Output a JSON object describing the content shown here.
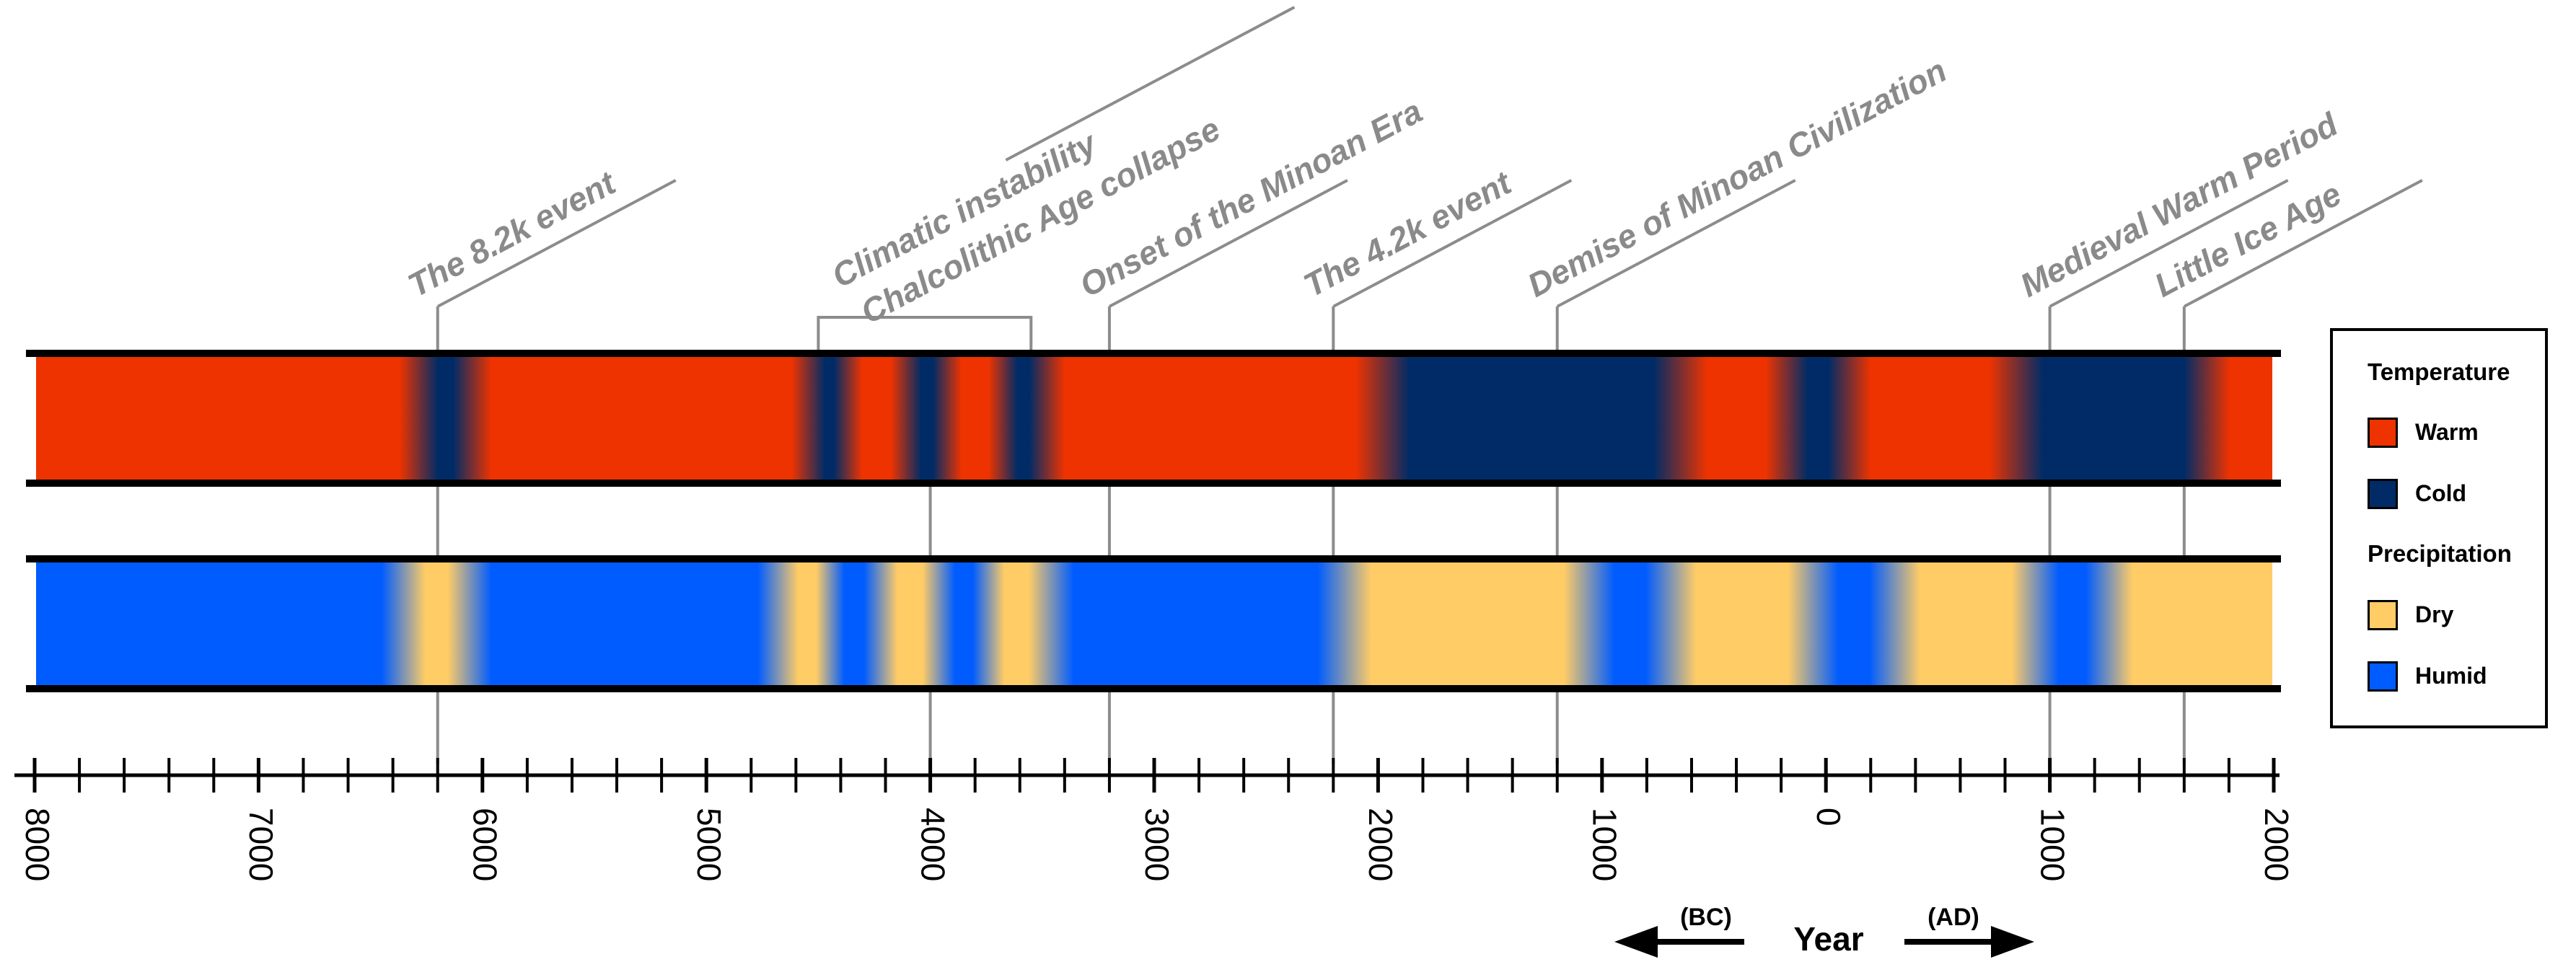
{
  "chart_data": {
    "type": "timeline",
    "x_axis": {
      "label": "Year",
      "range": [
        -8000,
        2000
      ],
      "major_step": 1000,
      "minor_step": 200,
      "tick_labels": [
        {
          "value": -8000,
          "text": "8000"
        },
        {
          "value": -7000,
          "text": "7000"
        },
        {
          "value": -6000,
          "text": "6000"
        },
        {
          "value": -5000,
          "text": "5000"
        },
        {
          "value": -4000,
          "text": "4000"
        },
        {
          "value": -3000,
          "text": "3000"
        },
        {
          "value": -2000,
          "text": "2000"
        },
        {
          "value": -1000,
          "text": "1000"
        },
        {
          "value": 0,
          "text": "0"
        },
        {
          "value": 1000,
          "text": "1000"
        },
        {
          "value": 2000,
          "text": "2000"
        }
      ],
      "bc_label": "(BC)",
      "ad_label": "(AD)"
    },
    "temperature": {
      "legend_title": "Temperature",
      "colors": {
        "warm": "#ee3300",
        "cold": "#002b66"
      },
      "labels": {
        "warm": "Warm",
        "cold": "Cold"
      },
      "intervals": [
        {
          "start": -8000,
          "end": -6250,
          "state": "warm"
        },
        {
          "start": -6250,
          "end": -6080,
          "state": "cold"
        },
        {
          "start": -6080,
          "end": -4500,
          "state": "warm"
        },
        {
          "start": -4500,
          "end": -4400,
          "state": "cold"
        },
        {
          "start": -4400,
          "end": -4080,
          "state": "warm"
        },
        {
          "start": -4080,
          "end": -3950,
          "state": "cold"
        },
        {
          "start": -3950,
          "end": -3650,
          "state": "warm"
        },
        {
          "start": -3650,
          "end": -3520,
          "state": "cold"
        },
        {
          "start": -3520,
          "end": -1980,
          "state": "warm"
        },
        {
          "start": -1980,
          "end": -650,
          "state": "cold"
        },
        {
          "start": -650,
          "end": -150,
          "state": "warm"
        },
        {
          "start": -150,
          "end": 80,
          "state": "cold"
        },
        {
          "start": 80,
          "end": 850,
          "state": "warm"
        },
        {
          "start": 850,
          "end": 1720,
          "state": "cold"
        },
        {
          "start": 1720,
          "end": 2000,
          "state": "warm"
        }
      ]
    },
    "precipitation": {
      "legend_title": "Precipitation",
      "colors": {
        "dry": "#ffcc66",
        "humid": "#005cff"
      },
      "labels": {
        "dry": "Dry",
        "humid": "Humid"
      },
      "intervals": [
        {
          "start": -8000,
          "end": -6330,
          "state": "humid"
        },
        {
          "start": -6330,
          "end": -6080,
          "state": "dry"
        },
        {
          "start": -6080,
          "end": -4650,
          "state": "humid"
        },
        {
          "start": -4650,
          "end": -4450,
          "state": "dry"
        },
        {
          "start": -4450,
          "end": -4230,
          "state": "humid"
        },
        {
          "start": -4230,
          "end": -3950,
          "state": "dry"
        },
        {
          "start": -3950,
          "end": -3750,
          "state": "humid"
        },
        {
          "start": -3750,
          "end": -3480,
          "state": "dry"
        },
        {
          "start": -3480,
          "end": -2150,
          "state": "humid"
        },
        {
          "start": -2150,
          "end": -1050,
          "state": "dry"
        },
        {
          "start": -1050,
          "end": -700,
          "state": "humid"
        },
        {
          "start": -700,
          "end": -50,
          "state": "dry"
        },
        {
          "start": -50,
          "end": 300,
          "state": "humid"
        },
        {
          "start": 300,
          "end": 950,
          "state": "dry"
        },
        {
          "start": 950,
          "end": 1250,
          "state": "humid"
        },
        {
          "start": 1250,
          "end": 2000,
          "state": "dry"
        }
      ]
    },
    "events": [
      {
        "label": "The 8.2k event",
        "year": -6200
      },
      {
        "label": "Climatic instability",
        "year": -4500,
        "bracket_end": -3550,
        "drop_year": -4000
      },
      {
        "label": "Chalcolithic Age collapse",
        "year": -3550
      },
      {
        "label": "Onset of the Minoan Era",
        "year": -3200
      },
      {
        "label": "The 4.2k event",
        "year": -2200
      },
      {
        "label": "Demise of Minoan Civilization",
        "year": -1200
      },
      {
        "label": "Medieval Warm Period",
        "year": 1000
      },
      {
        "label": "Little Ice Age",
        "year": 1600
      }
    ]
  }
}
